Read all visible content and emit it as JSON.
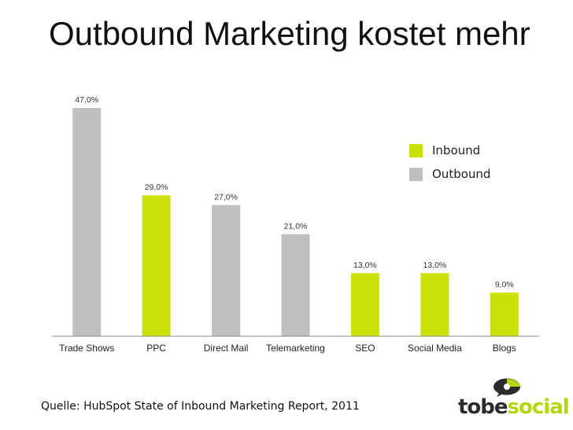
{
  "slide": {
    "title": "Outbound Marketing kostet mehr",
    "source": "Quelle: HubSpot State of Inbound Marketing Report,  2011"
  },
  "logo": {
    "text_dark": "tobe",
    "text_green": "social",
    "icon": "speech-bubble-logo-icon"
  },
  "colors": {
    "inbound": "#cde00a",
    "outbound": "#bfbfbf",
    "axis": "#8c8c8c"
  },
  "legend": {
    "inbound_label": "Inbound",
    "outbound_label": "Outbound"
  },
  "chart_data": {
    "type": "bar",
    "title": "",
    "xlabel": "",
    "ylabel": "",
    "ylim": [
      0,
      50
    ],
    "grid": false,
    "legend_position": "right",
    "categories": [
      "Trade Shows",
      "PPC",
      "Direct Mail",
      "Telemarketing",
      "SEO",
      "Social Media",
      "Blogs"
    ],
    "values": [
      47.0,
      29.0,
      27.0,
      21.0,
      13.0,
      13.0,
      9.0
    ],
    "value_labels": [
      "47,0%",
      "29,0%",
      "27,0%",
      "21,0%",
      "13,0%",
      "13,0%",
      "9,0%"
    ],
    "groups": [
      "Outbound",
      "Inbound",
      "Outbound",
      "Outbound",
      "Inbound",
      "Inbound",
      "Inbound"
    ]
  }
}
